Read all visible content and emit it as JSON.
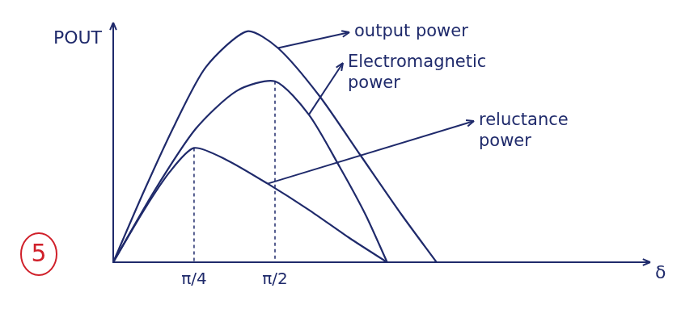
{
  "chart_data": {
    "type": "line",
    "xlabel": "δ",
    "ylabel": "POUT",
    "xlim": [
      0,
      5.2
    ],
    "ylim": [
      0,
      10
    ],
    "xticks": [
      {
        "value": 0.785,
        "label": "π/4"
      },
      {
        "value": 1.571,
        "label": "π/2"
      }
    ],
    "yticks": [],
    "tick_labels": "x",
    "grid": false,
    "series": [
      {
        "name": "output power",
        "color": "#1f2a6b",
        "x": [
          0,
          0.3,
          0.6,
          0.9,
          1.3,
          1.6,
          2.0,
          2.4,
          2.8,
          3.14
        ],
        "values": [
          0,
          3.0,
          5.8,
          8.2,
          9.7,
          9.0,
          7.0,
          4.5,
          2.0,
          0
        ]
      },
      {
        "name": "Electromagnetic power",
        "color": "#1f2a6b",
        "x": [
          0,
          0.4,
          0.8,
          1.2,
          1.571,
          1.9,
          2.2,
          2.45,
          2.66
        ],
        "values": [
          0,
          3.0,
          5.6,
          7.2,
          7.6,
          6.2,
          4.0,
          2.0,
          0
        ]
      },
      {
        "name": "reluctance power",
        "color": "#1f2a6b",
        "x": [
          0,
          0.3,
          0.55,
          0.785,
          1.1,
          1.5,
          1.9,
          2.3,
          2.66
        ],
        "values": [
          0,
          2.2,
          3.8,
          4.8,
          4.3,
          3.3,
          2.2,
          1.0,
          0
        ]
      }
    ],
    "annotations": [
      {
        "text": "5",
        "color": "#d0202a"
      }
    ]
  }
}
